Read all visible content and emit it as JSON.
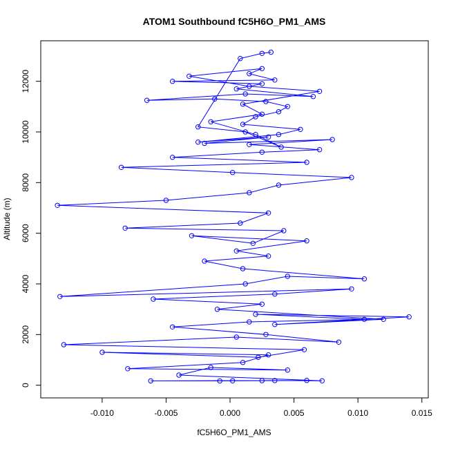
{
  "chart_data": {
    "type": "line",
    "markers": "open-circle",
    "title": "ATOM1 Southbound fC5H6O_PM1_AMS",
    "xlabel": "fC5H6O_PM1_AMS",
    "ylabel": "Altitude (m)",
    "xlim": [
      -0.0148,
      0.0155
    ],
    "ylim": [
      -500,
      13600
    ],
    "xticks": [
      -0.01,
      -0.005,
      0.0,
      0.005,
      0.01,
      0.015
    ],
    "xtick_labels": [
      "-0.010",
      "-0.005",
      "0.000",
      "0.005",
      "0.010",
      "0.015"
    ],
    "yticks": [
      0,
      2000,
      4000,
      6000,
      8000,
      10000,
      12000
    ],
    "ytick_labels": [
      "0",
      "2000",
      "4000",
      "6000",
      "8000",
      "10000",
      "12000"
    ],
    "grid": false,
    "legend": "none",
    "series_color": "#0000ff",
    "series": [
      {
        "x": [
          -0.0008,
          0.0025,
          0.006,
          -0.0062,
          0.0002,
          0.0035,
          0.0072,
          -0.004,
          -0.0015,
          0.0045,
          -0.008,
          0.001,
          0.003,
          -0.01,
          0.0022,
          0.0058,
          -0.013,
          0.0005,
          0.0085,
          0.0028,
          -0.0045,
          0.0015,
          0.0105,
          0.002,
          0.014,
          0.0035,
          0.012,
          -0.001,
          0.0025,
          -0.006,
          0.0035,
          0.0095,
          -0.0133,
          0.0012,
          0.0045,
          0.0105,
          0.001,
          -0.002,
          0.003,
          0.0005,
          0.006,
          -0.003,
          0.0018,
          0.0042,
          -0.0082,
          0.0008,
          0.003,
          -0.0135,
          -0.005,
          0.0015,
          0.0038,
          0.0095,
          0.0002,
          -0.0085,
          0.006,
          -0.0045,
          0.0025,
          0.007,
          0.0015,
          0.008,
          -0.002,
          0.003,
          -0.0025,
          0.0038,
          0.0055,
          0.001,
          0.002,
          0.0038,
          0.0045,
          0.0028,
          -0.0012,
          -0.0065,
          0.0012,
          0.0065,
          0.0005,
          0.0025,
          -0.0045,
          0.0035,
          0.0015,
          0.0025,
          -0.0032,
          0.0015,
          0.007,
          0.001,
          0.0025,
          -0.0015,
          0.002,
          0.004,
          0.0012,
          -0.0025,
          0.0008,
          0.0025,
          0.0032
        ],
        "y": [
          170,
          180,
          190,
          170,
          175,
          185,
          175,
          400,
          700,
          600,
          650,
          900,
          1200,
          1300,
          1100,
          1400,
          1600,
          1900,
          1700,
          2000,
          2300,
          2500,
          2600,
          2800,
          2700,
          2400,
          2600,
          3000,
          3200,
          3400,
          3600,
          3800,
          3500,
          4000,
          4300,
          4200,
          4600,
          4900,
          5100,
          5300,
          5700,
          5900,
          5600,
          6100,
          6200,
          6400,
          6800,
          7100,
          7300,
          7600,
          7900,
          8200,
          8400,
          8600,
          8800,
          9000,
          9200,
          9300,
          9500,
          9700,
          9550,
          9800,
          9600,
          9900,
          10100,
          10300,
          10600,
          10800,
          11000,
          11200,
          11300,
          11250,
          11500,
          11400,
          11700,
          11900,
          12000,
          12050,
          12300,
          12500,
          12200,
          11800,
          11600,
          11100,
          10700,
          10400,
          9900,
          9400,
          10000,
          10200,
          12900,
          13100,
          13150
        ]
      }
    ]
  }
}
